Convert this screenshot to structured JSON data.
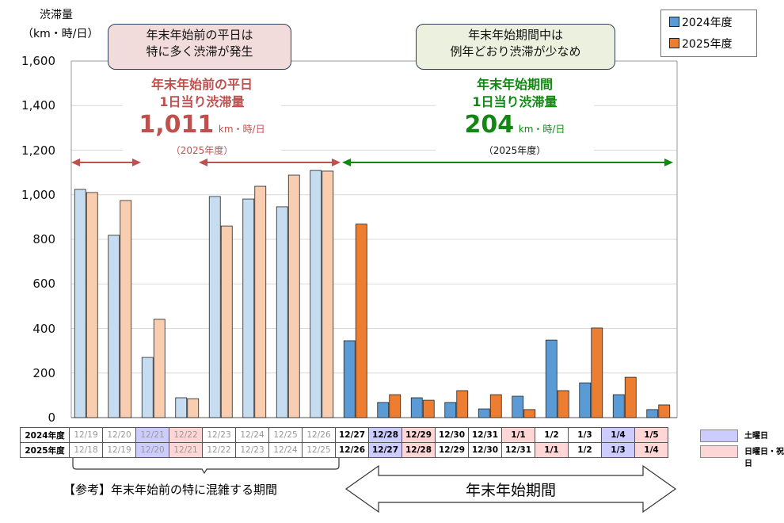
{
  "chart_data": {
    "type": "bar",
    "ylabel": "渋滞量",
    "yunit": "（km・時/日）",
    "ylim": [
      0,
      1600
    ],
    "yticks": [
      "0",
      "200",
      "400",
      "600",
      "800",
      "1,000",
      "1,200",
      "1,400",
      "1,600"
    ],
    "grid": true,
    "legend_position": "top-right",
    "categories_2024": [
      "12/19",
      "12/20",
      "12/21",
      "12/22",
      "12/23",
      "12/24",
      "12/25",
      "12/26",
      "12/27",
      "12/28",
      "12/29",
      "12/30",
      "12/31",
      "1/1",
      "1/2",
      "1/3",
      "1/4",
      "1/5"
    ],
    "categories_2025": [
      "12/18",
      "12/19",
      "12/20",
      "12/21",
      "12/22",
      "12/23",
      "12/24",
      "12/25",
      "12/26",
      "12/27",
      "12/28",
      "12/29",
      "12/30",
      "12/31",
      "1/1",
      "1/2",
      "1/3",
      "1/4"
    ],
    "day_type": [
      "",
      "",
      "sat",
      "sun",
      "",
      "",
      "",
      "",
      "",
      "sat",
      "sun",
      "",
      "",
      "sun",
      "",
      "",
      "sat",
      "sun"
    ],
    "day_type_2025": [
      "",
      "",
      "sat",
      "sun",
      "",
      "",
      "",
      "",
      "",
      "sat",
      "sun",
      "",
      "",
      "",
      "sun",
      "",
      "sat",
      "sun"
    ],
    "period_start_index": 8,
    "series": [
      {
        "name": "2024年度",
        "values": [
          1024,
          818,
          270,
          89,
          992,
          981,
          946,
          1109,
          345,
          68,
          89,
          68,
          39,
          96,
          348,
          156,
          103,
          36
        ]
      },
      {
        "name": "2025年度",
        "values": [
          1010,
          974,
          441,
          85,
          860,
          1038,
          1088,
          1106,
          868,
          103,
          78,
          121,
          103,
          36,
          121,
          402,
          181,
          57
        ]
      }
    ],
    "colors": {
      "c2024": "#5b9bd5",
      "c2025": "#ed7d31",
      "c2024_pre": "#c6dcf0",
      "c2025_pre": "#f8cdb0",
      "red": "#c0504d",
      "green": "#118811"
    }
  },
  "table": {
    "row_labels": [
      "2024年度",
      "2025年度"
    ]
  },
  "legend_days": {
    "sat": "土曜日",
    "sun": "日曜日・祝日"
  },
  "callout_left": {
    "line1": "年末年始前の平日は",
    "line2": "特に多く渋滞が発生"
  },
  "callout_right": {
    "line1": "年末年始期間中は",
    "line2": "例年どおり渋滞が少なめ"
  },
  "note_left": {
    "title1": "年末年始前の平日",
    "title2": "1日当り渋滞量",
    "value": "1,011",
    "unit": "km・時/日",
    "year": "（2025年度）"
  },
  "note_right": {
    "title1": "年末年始期間",
    "title2": "1日当り渋滞量",
    "value": "204",
    "unit": "km・時/日",
    "year": "（2025年度）"
  },
  "bottom": {
    "left_label": "【参考】年末年始前の特に混雑する期間",
    "right_label": "年末年始期間"
  }
}
